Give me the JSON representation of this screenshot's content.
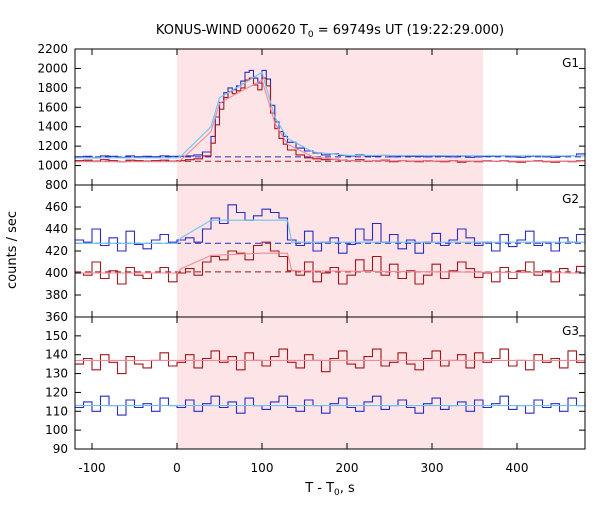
{
  "title": {
    "main": "KONUS-WIND 000620 T",
    "sub": "0",
    "rest": " = 69749s UT (19:22:29.000)"
  },
  "colors": {
    "shade": "#fde4e6",
    "blue": "#2b2bc8",
    "red": "#a3161a",
    "cyan_fit": "#6cc4ee",
    "pink_fit": "#f08a9a",
    "dashed_blue": "#2b2bc8",
    "dashed_red": "#a3161a"
  },
  "chart_data": [
    {
      "type": "line",
      "panel": "G1",
      "label": "G1",
      "xlim": [
        -120,
        480
      ],
      "ylim": [
        800,
        2200
      ],
      "yticks": [
        800,
        1000,
        1200,
        1400,
        1600,
        1800,
        2000,
        2200
      ],
      "shaded_interval": [
        0,
        360
      ],
      "x": [
        -120,
        -110,
        -100,
        -90,
        -80,
        -70,
        -60,
        -50,
        -40,
        -30,
        -20,
        -10,
        0,
        10,
        20,
        30,
        40,
        45,
        50,
        55,
        60,
        65,
        70,
        75,
        80,
        85,
        90,
        95,
        100,
        105,
        110,
        115,
        120,
        125,
        130,
        140,
        150,
        160,
        170,
        180,
        190,
        200,
        210,
        220,
        230,
        240,
        250,
        260,
        270,
        280,
        290,
        300,
        310,
        320,
        330,
        340,
        350,
        360,
        370,
        380,
        390,
        400,
        410,
        420,
        430,
        440,
        450,
        460,
        470,
        480
      ],
      "series": [
        {
          "values": [
            1090,
            1095,
            1080,
            1100,
            1095,
            1085,
            1100,
            1090,
            1095,
            1090,
            1100,
            1095,
            1095,
            1100,
            1110,
            1140,
            1300,
            1500,
            1650,
            1750,
            1800,
            1780,
            1820,
            1870,
            1960,
            1980,
            1900,
            1850,
            1980,
            1890,
            1620,
            1450,
            1350,
            1300,
            1240,
            1180,
            1150,
            1130,
            1110,
            1120,
            1105,
            1100,
            1110,
            1100,
            1095,
            1105,
            1090,
            1100,
            1095,
            1095,
            1090,
            1100,
            1095,
            1090,
            1100,
            1085,
            1090,
            1095,
            1095,
            1100,
            1090,
            1085,
            1095,
            1100,
            1090,
            1085,
            1095,
            1100,
            1120,
            1090
          ]
        },
        {
          "values": [
            1050,
            1055,
            1045,
            1060,
            1050,
            1040,
            1055,
            1050,
            1045,
            1050,
            1055,
            1045,
            1050,
            1060,
            1070,
            1100,
            1230,
            1420,
            1580,
            1700,
            1760,
            1740,
            1770,
            1800,
            1880,
            1900,
            1830,
            1780,
            1900,
            1820,
            1540,
            1380,
            1280,
            1220,
            1160,
            1110,
            1080,
            1070,
            1060,
            1065,
            1055,
            1050,
            1060,
            1045,
            1050,
            1055,
            1040,
            1050,
            1045,
            1040,
            1050,
            1045,
            1040,
            1050,
            1035,
            1045,
            1040,
            1050,
            1045,
            1050,
            1040,
            1035,
            1045,
            1050,
            1040,
            1035,
            1045,
            1040,
            1050,
            1040
          ]
        }
      ],
      "fit_blue": [
        [
          -120,
          1080
        ],
        [
          0,
          1080
        ],
        [
          5,
          1100
        ],
        [
          40,
          1400
        ],
        [
          50,
          1700
        ],
        [
          70,
          1800
        ],
        [
          100,
          1960
        ],
        [
          115,
          1500
        ],
        [
          130,
          1280
        ],
        [
          160,
          1140
        ],
        [
          200,
          1105
        ],
        [
          480,
          1100
        ]
      ],
      "fit_red": [
        [
          -120,
          1040
        ],
        [
          0,
          1040
        ],
        [
          5,
          1060
        ],
        [
          40,
          1350
        ],
        [
          50,
          1640
        ],
        [
          70,
          1740
        ],
        [
          100,
          1880
        ],
        [
          115,
          1440
        ],
        [
          130,
          1220
        ],
        [
          160,
          1090
        ],
        [
          200,
          1050
        ],
        [
          480,
          1045
        ]
      ],
      "baseline_blue": 1090,
      "baseline_red": 1045
    },
    {
      "type": "line",
      "panel": "G2",
      "label": "G2",
      "xlim": [
        -120,
        480
      ],
      "ylim": [
        360,
        480
      ],
      "yticks": [
        360,
        380,
        400,
        420,
        440,
        460
      ],
      "shaded_interval": [
        0,
        360
      ],
      "x": [
        -120,
        -110,
        -100,
        -90,
        -80,
        -70,
        -60,
        -50,
        -40,
        -30,
        -20,
        -10,
        0,
        10,
        20,
        30,
        40,
        50,
        60,
        70,
        80,
        90,
        100,
        110,
        120,
        130,
        140,
        150,
        160,
        170,
        180,
        190,
        200,
        210,
        220,
        230,
        240,
        250,
        260,
        270,
        280,
        290,
        300,
        310,
        320,
        330,
        340,
        350,
        360,
        370,
        380,
        390,
        400,
        410,
        420,
        430,
        440,
        450,
        460,
        470,
        480
      ],
      "series": [
        {
          "values": [
            430,
            428,
            440,
            425,
            432,
            420,
            438,
            426,
            422,
            430,
            435,
            428,
            430,
            432,
            428,
            440,
            450,
            445,
            462,
            455,
            448,
            452,
            458,
            455,
            450,
            430,
            425,
            438,
            420,
            428,
            432,
            418,
            426,
            440,
            430,
            445,
            428,
            435,
            422,
            430,
            418,
            428,
            436,
            425,
            430,
            440,
            432,
            425,
            428,
            420,
            435,
            424,
            430,
            438,
            425,
            428,
            420,
            432,
            428,
            435,
            425
          ]
        },
        {
          "values": [
            400,
            398,
            410,
            395,
            402,
            390,
            405,
            398,
            395,
            400,
            405,
            392,
            400,
            404,
            398,
            410,
            415,
            412,
            420,
            418,
            412,
            425,
            428,
            420,
            415,
            402,
            398,
            410,
            392,
            400,
            405,
            390,
            398,
            412,
            402,
            415,
            398,
            408,
            395,
            402,
            390,
            398,
            408,
            395,
            402,
            410,
            404,
            396,
            400,
            392,
            405,
            395,
            402,
            410,
            398,
            402,
            392,
            404,
            400,
            406,
            396
          ]
        }
      ],
      "fit_blue": [
        [
          -120,
          427
        ],
        [
          0,
          427
        ],
        [
          5,
          432
        ],
        [
          40,
          448
        ],
        [
          100,
          448
        ],
        [
          130,
          448
        ],
        [
          135,
          428
        ],
        [
          480,
          428
        ]
      ],
      "fit_red": [
        [
          -120,
          400
        ],
        [
          0,
          400
        ],
        [
          5,
          404
        ],
        [
          40,
          416
        ],
        [
          100,
          418
        ],
        [
          130,
          418
        ],
        [
          135,
          402
        ],
        [
          480,
          400
        ]
      ],
      "baseline_blue": 427,
      "baseline_red": 401
    },
    {
      "type": "line",
      "panel": "G3",
      "label": "G3",
      "xlim": [
        -120,
        480
      ],
      "ylim": [
        90,
        160
      ],
      "yticks": [
        90,
        100,
        110,
        120,
        130,
        140,
        150
      ],
      "shaded_interval": [
        0,
        360
      ],
      "x": [
        -120,
        -110,
        -100,
        -90,
        -80,
        -70,
        -60,
        -50,
        -40,
        -30,
        -20,
        -10,
        0,
        10,
        20,
        30,
        40,
        50,
        60,
        70,
        80,
        90,
        100,
        110,
        120,
        130,
        140,
        150,
        160,
        170,
        180,
        190,
        200,
        210,
        220,
        230,
        240,
        250,
        260,
        270,
        280,
        290,
        300,
        310,
        320,
        330,
        340,
        350,
        360,
        370,
        380,
        390,
        400,
        410,
        420,
        430,
        440,
        450,
        460,
        470,
        480
      ],
      "series": [
        {
          "values": [
            112,
            115,
            110,
            118,
            113,
            108,
            116,
            112,
            114,
            110,
            117,
            113,
            112,
            116,
            110,
            114,
            118,
            112,
            115,
            109,
            117,
            113,
            111,
            115,
            118,
            112,
            110,
            116,
            113,
            109,
            114,
            117,
            112,
            110,
            115,
            118,
            111,
            113,
            116,
            112,
            109,
            114,
            117,
            111,
            113,
            115,
            110,
            116,
            112,
            114,
            118,
            111,
            113,
            109,
            116,
            112,
            114,
            110,
            117,
            113,
            115
          ]
        },
        {
          "values": [
            135,
            138,
            132,
            140,
            136,
            130,
            139,
            135,
            133,
            137,
            141,
            134,
            136,
            140,
            133,
            138,
            142,
            136,
            139,
            132,
            141,
            137,
            134,
            139,
            143,
            136,
            133,
            140,
            137,
            131,
            138,
            142,
            135,
            133,
            139,
            143,
            134,
            136,
            141,
            135,
            132,
            138,
            142,
            134,
            137,
            140,
            133,
            141,
            136,
            138,
            143,
            134,
            137,
            132,
            140,
            136,
            138,
            133,
            142,
            136,
            139
          ]
        }
      ],
      "fit_blue": [
        [
          -120,
          113
        ],
        [
          480,
          113
        ]
      ],
      "fit_red": [
        [
          -120,
          137
        ],
        [
          480,
          137
        ]
      ]
    }
  ],
  "xaxis": {
    "ticks": [
      -100,
      0,
      100,
      200,
      300,
      400
    ],
    "label_main": "T - T",
    "label_sub": "0",
    "label_rest": ", s"
  },
  "yaxis": {
    "label": "counts / sec"
  }
}
